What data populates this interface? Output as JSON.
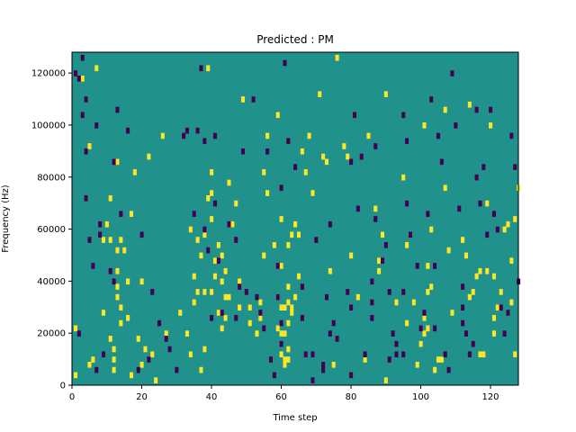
{
  "chart_data": {
    "type": "heatmap",
    "title": "Predicted : PM",
    "xlabel": "Time step",
    "ylabel": "Frequency (Hz)",
    "xlim": [
      0,
      128
    ],
    "ylim": [
      0,
      128000
    ],
    "x_ticks": [
      0,
      20,
      40,
      60,
      80,
      100,
      120
    ],
    "y_ticks": [
      0,
      20000,
      40000,
      60000,
      80000,
      100000,
      120000
    ],
    "background_value": 0,
    "grid": false,
    "colors": {
      "low": "#440154",
      "mid": "#21918c",
      "high": "#fde725"
    },
    "cells_high": [
      [
        1,
        22000
      ],
      [
        1,
        4000
      ],
      [
        3,
        118000
      ],
      [
        5,
        92000
      ],
      [
        5,
        8000
      ],
      [
        6,
        10000
      ],
      [
        7,
        122000
      ],
      [
        9,
        56000
      ],
      [
        9,
        28000
      ],
      [
        10,
        62000
      ],
      [
        11,
        72000
      ],
      [
        11,
        56000
      ],
      [
        11,
        18000
      ],
      [
        12,
        14000
      ],
      [
        12,
        10000
      ],
      [
        12,
        6000
      ],
      [
        13,
        86000
      ],
      [
        13,
        38000
      ],
      [
        13,
        44000
      ],
      [
        13,
        52000
      ],
      [
        13,
        34000
      ],
      [
        14,
        24000
      ],
      [
        14,
        30000
      ],
      [
        14,
        56000
      ],
      [
        15,
        52000
      ],
      [
        16,
        40000
      ],
      [
        16,
        26000
      ],
      [
        17,
        66000
      ],
      [
        17,
        4000
      ],
      [
        18,
        82000
      ],
      [
        19,
        18000
      ],
      [
        20,
        8000
      ],
      [
        20,
        40000
      ],
      [
        21,
        14000
      ],
      [
        22,
        88000
      ],
      [
        23,
        12000
      ],
      [
        24,
        2000
      ],
      [
        26,
        96000
      ],
      [
        27,
        20000
      ],
      [
        31,
        28000
      ],
      [
        33,
        20000
      ],
      [
        34,
        60000
      ],
      [
        34,
        12000
      ],
      [
        35,
        42000
      ],
      [
        35,
        32000
      ],
      [
        36,
        56000
      ],
      [
        36,
        36000
      ],
      [
        37,
        50000
      ],
      [
        37,
        6000
      ],
      [
        38,
        58000
      ],
      [
        38,
        14000
      ],
      [
        38,
        36000
      ],
      [
        39,
        122000
      ],
      [
        39,
        72000
      ],
      [
        40,
        82000
      ],
      [
        40,
        64000
      ],
      [
        40,
        74000
      ],
      [
        40,
        36000
      ],
      [
        41,
        48000
      ],
      [
        41,
        42000
      ],
      [
        42,
        54000
      ],
      [
        42,
        28000
      ],
      [
        43,
        50000
      ],
      [
        43,
        22000
      ],
      [
        43,
        40000
      ],
      [
        44,
        44000
      ],
      [
        44,
        34000
      ],
      [
        44,
        26000
      ],
      [
        45,
        78000
      ],
      [
        45,
        34000
      ],
      [
        46,
        62000
      ],
      [
        47,
        70000
      ],
      [
        48,
        40000
      ],
      [
        48,
        30000
      ],
      [
        49,
        110000
      ],
      [
        51,
        24000
      ],
      [
        51,
        30000
      ],
      [
        53,
        20000
      ],
      [
        54,
        32000
      ],
      [
        54,
        26000
      ],
      [
        55,
        82000
      ],
      [
        55,
        50000
      ],
      [
        56,
        96000
      ],
      [
        56,
        74000
      ],
      [
        58,
        54000
      ],
      [
        59,
        104000
      ],
      [
        59,
        34000
      ],
      [
        59,
        22000
      ],
      [
        60,
        64000
      ],
      [
        60,
        46000
      ],
      [
        60,
        30000
      ],
      [
        60,
        20000
      ],
      [
        60,
        12000
      ],
      [
        61,
        30000
      ],
      [
        61,
        20000
      ],
      [
        61,
        10000
      ],
      [
        61,
        8000
      ],
      [
        62,
        54000
      ],
      [
        62,
        38000
      ],
      [
        62,
        32000
      ],
      [
        62,
        24000
      ],
      [
        62,
        14000
      ],
      [
        62,
        10000
      ],
      [
        63,
        58000
      ],
      [
        63,
        30000
      ],
      [
        63,
        28000
      ],
      [
        64,
        62000
      ],
      [
        64,
        34000
      ],
      [
        65,
        42000
      ],
      [
        65,
        58000
      ],
      [
        66,
        90000
      ],
      [
        67,
        82000
      ],
      [
        68,
        96000
      ],
      [
        69,
        74000
      ],
      [
        71,
        112000
      ],
      [
        72,
        88000
      ],
      [
        73,
        86000
      ],
      [
        74,
        44000
      ],
      [
        75,
        8000
      ],
      [
        76,
        126000
      ],
      [
        78,
        92000
      ],
      [
        79,
        88000
      ],
      [
        80,
        50000
      ],
      [
        82,
        34000
      ],
      [
        84,
        10000
      ],
      [
        85,
        96000
      ],
      [
        87,
        68000
      ],
      [
        88,
        44000
      ],
      [
        88,
        48000
      ],
      [
        89,
        58000
      ],
      [
        90,
        2000
      ],
      [
        90,
        112000
      ],
      [
        93,
        32000
      ],
      [
        95,
        80000
      ],
      [
        96,
        54000
      ],
      [
        96,
        24000
      ],
      [
        97,
        58000
      ],
      [
        98,
        32000
      ],
      [
        99,
        8000
      ],
      [
        100,
        16000
      ],
      [
        101,
        100000
      ],
      [
        101,
        26000
      ],
      [
        101,
        20000
      ],
      [
        102,
        36000
      ],
      [
        102,
        46000
      ],
      [
        102,
        22000
      ],
      [
        103,
        60000
      ],
      [
        103,
        38000
      ],
      [
        104,
        6000
      ],
      [
        105,
        10000
      ],
      [
        106,
        10000
      ],
      [
        107,
        106000
      ],
      [
        107,
        76000
      ],
      [
        108,
        52000
      ],
      [
        109,
        28000
      ],
      [
        112,
        56000
      ],
      [
        113,
        50000
      ],
      [
        114,
        108000
      ],
      [
        114,
        34000
      ],
      [
        115,
        36000
      ],
      [
        116,
        42000
      ],
      [
        117,
        44000
      ],
      [
        117,
        12000
      ],
      [
        118,
        12000
      ],
      [
        119,
        44000
      ],
      [
        119,
        70000
      ],
      [
        120,
        100000
      ],
      [
        121,
        42000
      ],
      [
        121,
        26000
      ],
      [
        121,
        20000
      ],
      [
        122,
        30000
      ],
      [
        123,
        36000
      ],
      [
        124,
        60000
      ],
      [
        125,
        62000
      ],
      [
        126,
        32000
      ],
      [
        126,
        48000
      ],
      [
        127,
        12000
      ],
      [
        127,
        64000
      ],
      [
        128,
        76000
      ]
    ],
    "cells_low": [
      [
        1,
        120000
      ],
      [
        2,
        118000
      ],
      [
        2,
        20000
      ],
      [
        3,
        126000
      ],
      [
        3,
        104000
      ],
      [
        4,
        110000
      ],
      [
        4,
        90000
      ],
      [
        4,
        72000
      ],
      [
        5,
        56000
      ],
      [
        6,
        46000
      ],
      [
        7,
        100000
      ],
      [
        7,
        6000
      ],
      [
        8,
        58000
      ],
      [
        8,
        62000
      ],
      [
        9,
        12000
      ],
      [
        11,
        44000
      ],
      [
        12,
        86000
      ],
      [
        12,
        40000
      ],
      [
        13,
        106000
      ],
      [
        14,
        66000
      ],
      [
        16,
        98000
      ],
      [
        19,
        6000
      ],
      [
        20,
        58000
      ],
      [
        22,
        10000
      ],
      [
        23,
        36000
      ],
      [
        25,
        24000
      ],
      [
        27,
        18000
      ],
      [
        28,
        14000
      ],
      [
        30,
        6000
      ],
      [
        32,
        96000
      ],
      [
        33,
        98000
      ],
      [
        35,
        66000
      ],
      [
        36,
        98000
      ],
      [
        37,
        122000
      ],
      [
        38,
        94000
      ],
      [
        38,
        60000
      ],
      [
        39,
        52000
      ],
      [
        40,
        26000
      ],
      [
        41,
        96000
      ],
      [
        41,
        70000
      ],
      [
        42,
        48000
      ],
      [
        43,
        28000
      ],
      [
        45,
        62000
      ],
      [
        47,
        56000
      ],
      [
        47,
        26000
      ],
      [
        48,
        38000
      ],
      [
        49,
        90000
      ],
      [
        50,
        36000
      ],
      [
        52,
        110000
      ],
      [
        53,
        34000
      ],
      [
        54,
        28000
      ],
      [
        55,
        22000
      ],
      [
        56,
        90000
      ],
      [
        57,
        10000
      ],
      [
        58,
        4000
      ],
      [
        59,
        46000
      ],
      [
        59,
        34000
      ],
      [
        60,
        76000
      ],
      [
        60,
        24000
      ],
      [
        60,
        16000
      ],
      [
        61,
        124000
      ],
      [
        62,
        94000
      ],
      [
        64,
        84000
      ],
      [
        66,
        38000
      ],
      [
        66,
        26000
      ],
      [
        67,
        12000
      ],
      [
        69,
        12000
      ],
      [
        69,
        2000
      ],
      [
        70,
        56000
      ],
      [
        72,
        6000
      ],
      [
        72,
        8000
      ],
      [
        73,
        34000
      ],
      [
        74,
        62000
      ],
      [
        74,
        20000
      ],
      [
        75,
        24000
      ],
      [
        76,
        18000
      ],
      [
        79,
        36000
      ],
      [
        80,
        4000
      ],
      [
        80,
        30000
      ],
      [
        80,
        86000
      ],
      [
        81,
        104000
      ],
      [
        82,
        68000
      ],
      [
        83,
        88000
      ],
      [
        84,
        12000
      ],
      [
        86,
        40000
      ],
      [
        86,
        26000
      ],
      [
        86,
        32000
      ],
      [
        87,
        92000
      ],
      [
        87,
        64000
      ],
      [
        89,
        48000
      ],
      [
        90,
        54000
      ],
      [
        91,
        10000
      ],
      [
        91,
        36000
      ],
      [
        92,
        20000
      ],
      [
        93,
        12000
      ],
      [
        93,
        16000
      ],
      [
        95,
        104000
      ],
      [
        95,
        36000
      ],
      [
        95,
        12000
      ],
      [
        96,
        94000
      ],
      [
        96,
        70000
      ],
      [
        97,
        58000
      ],
      [
        99,
        46000
      ],
      [
        100,
        22000
      ],
      [
        101,
        28000
      ],
      [
        102,
        66000
      ],
      [
        103,
        110000
      ],
      [
        104,
        46000
      ],
      [
        104,
        22000
      ],
      [
        105,
        96000
      ],
      [
        106,
        86000
      ],
      [
        107,
        12000
      ],
      [
        108,
        6000
      ],
      [
        109,
        120000
      ],
      [
        110,
        100000
      ],
      [
        111,
        68000
      ],
      [
        112,
        38000
      ],
      [
        112,
        30000
      ],
      [
        112,
        24000
      ],
      [
        113,
        20000
      ],
      [
        114,
        12000
      ],
      [
        115,
        16000
      ],
      [
        116,
        106000
      ],
      [
        116,
        80000
      ],
      [
        117,
        70000
      ],
      [
        118,
        84000
      ],
      [
        119,
        58000
      ],
      [
        120,
        106000
      ],
      [
        121,
        66000
      ],
      [
        122,
        60000
      ],
      [
        123,
        30000
      ],
      [
        124,
        20000
      ],
      [
        125,
        28000
      ],
      [
        126,
        96000
      ],
      [
        127,
        84000
      ],
      [
        128,
        40000
      ]
    ]
  }
}
